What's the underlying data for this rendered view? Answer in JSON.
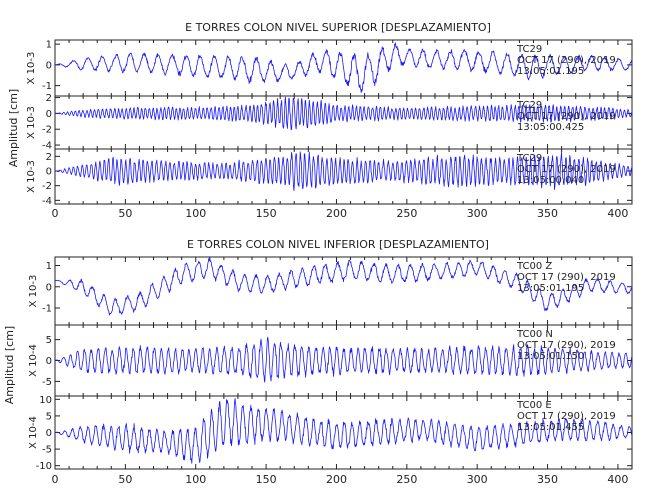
{
  "colors": {
    "trace": "#1a1aff",
    "axis": "#222222",
    "background": "#ffffff"
  },
  "chart_data": [
    {
      "type": "line",
      "title": "E TORRES COLON NIVEL SUPERIOR [DESPLAZAMIENTO]",
      "ylabel": "Amplitud [cm]",
      "xlim": [
        0,
        410
      ],
      "xticks": [
        0,
        50,
        100,
        150,
        200,
        250,
        300,
        350,
        400
      ],
      "series": [
        {
          "scale": "X 10-3",
          "ylim": [
            -1.5,
            1.2
          ],
          "yticks": [
            -1,
            0,
            1
          ],
          "ytick_labels": [
            "-1",
            "0",
            "1"
          ],
          "annotation": [
            "TC29",
            "OCT 17 (290), 2019",
            "13:05:01.195"
          ],
          "envelope": [
            [
              0,
              0
            ],
            [
              20,
              0.35
            ],
            [
              50,
              0.55
            ],
            [
              100,
              0.6
            ],
            [
              140,
              0.75
            ],
            [
              170,
              0.45
            ],
            [
              200,
              0.8
            ],
            [
              220,
              1.1
            ],
            [
              250,
              0.5
            ],
            [
              300,
              0.6
            ],
            [
              340,
              0.7
            ],
            [
              370,
              0.5
            ],
            [
              410,
              0.3
            ]
          ],
          "base": [
            [
              0,
              0
            ],
            [
              60,
              0.1
            ],
            [
              120,
              -0.1
            ],
            [
              165,
              -0.4
            ],
            [
              190,
              0.2
            ],
            [
              220,
              -0.5
            ],
            [
              240,
              0.5
            ],
            [
              260,
              0.3
            ],
            [
              300,
              0.2
            ],
            [
              340,
              -0.1
            ],
            [
              380,
              0.1
            ],
            [
              410,
              0
            ]
          ],
          "freq": 0.05,
          "seed": 11
        },
        {
          "scale": "X 10-3",
          "ylim": [
            -4.5,
            2.2
          ],
          "yticks": [
            -4,
            -2,
            0,
            2
          ],
          "ytick_labels": [
            "-4",
            "-2",
            "0",
            "2"
          ],
          "annotation": [
            "TC29",
            "OCT 17 (290), 2019",
            "13:05:00.425"
          ],
          "envelope": [
            [
              0,
              0
            ],
            [
              20,
              0.6
            ],
            [
              60,
              0.9
            ],
            [
              100,
              0.9
            ],
            [
              140,
              1.3
            ],
            [
              170,
              2.6
            ],
            [
              200,
              1.3
            ],
            [
              250,
              0.9
            ],
            [
              300,
              1.1
            ],
            [
              350,
              1.3
            ],
            [
              390,
              1.0
            ],
            [
              410,
              0.5
            ]
          ],
          "base": [
            [
              0,
              0
            ],
            [
              410,
              0
            ]
          ],
          "freq": 0.18,
          "seed": 23
        },
        {
          "scale": "X 10-3",
          "ylim": [
            -4.5,
            3.0
          ],
          "yticks": [
            -4,
            -2,
            0,
            2
          ],
          "ytick_labels": [
            "-4",
            "-2",
            "0",
            "2"
          ],
          "annotation": [
            "TC29",
            "OCT 17 (290), 2019",
            "13:05:00.040"
          ],
          "envelope": [
            [
              0,
              0
            ],
            [
              15,
              0.8
            ],
            [
              40,
              2.2
            ],
            [
              80,
              1.6
            ],
            [
              120,
              1.3
            ],
            [
              150,
              2.2
            ],
            [
              175,
              3.2
            ],
            [
              200,
              2.2
            ],
            [
              240,
              1.6
            ],
            [
              280,
              2.6
            ],
            [
              320,
              2.2
            ],
            [
              360,
              2.8
            ],
            [
              390,
              1.6
            ],
            [
              410,
              0.8
            ]
          ],
          "base": [
            [
              0,
              0
            ],
            [
              410,
              0
            ]
          ],
          "freq": 0.16,
          "seed": 37
        }
      ]
    },
    {
      "type": "line",
      "title": "E TORRES COLON NIVEL INFERIOR [DESPLAZAMIENTO]",
      "ylabel": "Amplitud [cm]",
      "xlim": [
        0,
        410
      ],
      "xticks": [
        0,
        50,
        100,
        150,
        200,
        250,
        300,
        350,
        400
      ],
      "series": [
        {
          "scale": "X 10-3",
          "ylim": [
            -1.8,
            1.4
          ],
          "yticks": [
            -1,
            0,
            1
          ],
          "ytick_labels": [
            "-1",
            "0",
            "1"
          ],
          "annotation": [
            "TC00 Z",
            "OCT 17 (290), 2019",
            "13:05:01.195"
          ],
          "envelope": [
            [
              0,
              0
            ],
            [
              20,
              0.4
            ],
            [
              50,
              0.5
            ],
            [
              100,
              0.55
            ],
            [
              150,
              0.5
            ],
            [
              200,
              0.55
            ],
            [
              250,
              0.5
            ],
            [
              300,
              0.45
            ],
            [
              350,
              0.5
            ],
            [
              410,
              0.3
            ]
          ],
          "base": [
            [
              0,
              0.3
            ],
            [
              20,
              0.0
            ],
            [
              40,
              -1.0
            ],
            [
              60,
              -0.7
            ],
            [
              90,
              0.6
            ],
            [
              110,
              0.9
            ],
            [
              130,
              0.2
            ],
            [
              150,
              0.1
            ],
            [
              180,
              0.5
            ],
            [
              210,
              0.8
            ],
            [
              240,
              0.6
            ],
            [
              270,
              0.7
            ],
            [
              300,
              0.9
            ],
            [
              330,
              0.2
            ],
            [
              350,
              -0.8
            ],
            [
              380,
              0.1
            ],
            [
              410,
              -0.1
            ]
          ],
          "freq": 0.06,
          "seed": 53
        },
        {
          "scale": "X 10-4",
          "ylim": [
            -8.5,
            8.5
          ],
          "yticks": [
            -5,
            0,
            5
          ],
          "ytick_labels": [
            "-5",
            "0",
            "5"
          ],
          "annotation": [
            "TC00 N",
            "OCT 17 (290), 2019",
            "13:05:01.150"
          ],
          "envelope": [
            [
              0,
              0
            ],
            [
              20,
              3.5
            ],
            [
              60,
              4
            ],
            [
              100,
              3.5
            ],
            [
              130,
              4
            ],
            [
              150,
              6.5
            ],
            [
              170,
              4.5
            ],
            [
              200,
              4
            ],
            [
              250,
              3.5
            ],
            [
              300,
              4
            ],
            [
              330,
              4.5
            ],
            [
              360,
              3.5
            ],
            [
              410,
              2
            ]
          ],
          "base": [
            [
              0,
              0
            ],
            [
              410,
              0
            ]
          ],
          "freq": 0.1,
          "seed": 71
        },
        {
          "scale": "X 10-4",
          "ylim": [
            -11,
            11
          ],
          "yticks": [
            -10,
            -5,
            0,
            5,
            10
          ],
          "ytick_labels": [
            "-10",
            "-5",
            "0",
            "5",
            "10"
          ],
          "annotation": [
            "TC00 E",
            "OCT 17 (290), 2019",
            "13:05:01.455"
          ],
          "envelope": [
            [
              0,
              0
            ],
            [
              20,
              3
            ],
            [
              50,
              5
            ],
            [
              80,
              4
            ],
            [
              100,
              7
            ],
            [
              120,
              9
            ],
            [
              150,
              6
            ],
            [
              180,
              5
            ],
            [
              220,
              5
            ],
            [
              260,
              4
            ],
            [
              300,
              4.5
            ],
            [
              340,
              4
            ],
            [
              380,
              4
            ],
            [
              410,
              2
            ]
          ],
          "base": [
            [
              0,
              0
            ],
            [
              60,
              -2
            ],
            [
              100,
              -4
            ],
            [
              120,
              3
            ],
            [
              160,
              2
            ],
            [
              200,
              -1
            ],
            [
              260,
              1
            ],
            [
              300,
              -2
            ],
            [
              360,
              1
            ],
            [
              410,
              0
            ]
          ],
          "freq": 0.09,
          "seed": 97
        }
      ]
    }
  ]
}
